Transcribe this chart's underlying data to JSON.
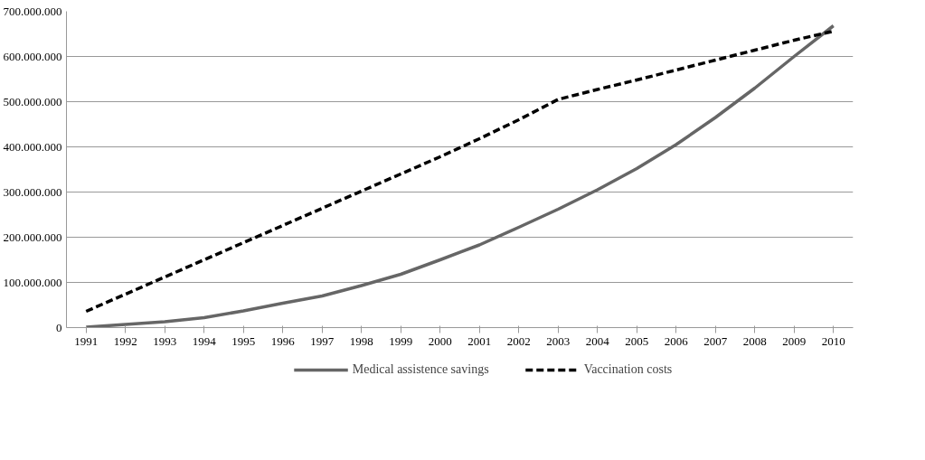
{
  "chart_data": {
    "type": "line",
    "categories": [
      "1991",
      "1992",
      "1993",
      "1994",
      "1995",
      "1996",
      "1997",
      "1998",
      "1999",
      "2000",
      "2001",
      "2002",
      "2003",
      "2004",
      "2005",
      "2006",
      "2007",
      "2008",
      "2009",
      "2010"
    ],
    "series": [
      {
        "name": "Medical assistence savings",
        "color": "#666666",
        "line_style": "solid",
        "values": [
          1000000,
          7000000,
          13000000,
          22000000,
          37000000,
          54000000,
          70000000,
          93000000,
          118000000,
          150000000,
          183000000,
          222000000,
          262000000,
          305000000,
          352000000,
          405000000,
          465000000,
          530000000,
          600000000,
          668000000
        ]
      },
      {
        "name": "Vaccination costs",
        "color": "#000000",
        "line_style": "dashed",
        "values": [
          36000000,
          74000000,
          112000000,
          150000000,
          188000000,
          226000000,
          264000000,
          302000000,
          340000000,
          378000000,
          418000000,
          460000000,
          505000000,
          527000000,
          548000000,
          570000000,
          592000000,
          614000000,
          636000000,
          656000000
        ]
      }
    ],
    "ylim": [
      0,
      700000000
    ],
    "yticks": [
      {
        "value": 0,
        "label": "0"
      },
      {
        "value": 100000000,
        "label": "100.000.000"
      },
      {
        "value": 200000000,
        "label": "200.000.000"
      },
      {
        "value": 300000000,
        "label": "300.000.000"
      },
      {
        "value": 400000000,
        "label": "400.000.000"
      },
      {
        "value": 500000000,
        "label": "500.000.000"
      },
      {
        "value": 600000000,
        "label": "600.000.000"
      },
      {
        "value": 700000000,
        "label": "700.000.000"
      }
    ],
    "grid": "y",
    "legend": "bottom",
    "marker": "none"
  }
}
